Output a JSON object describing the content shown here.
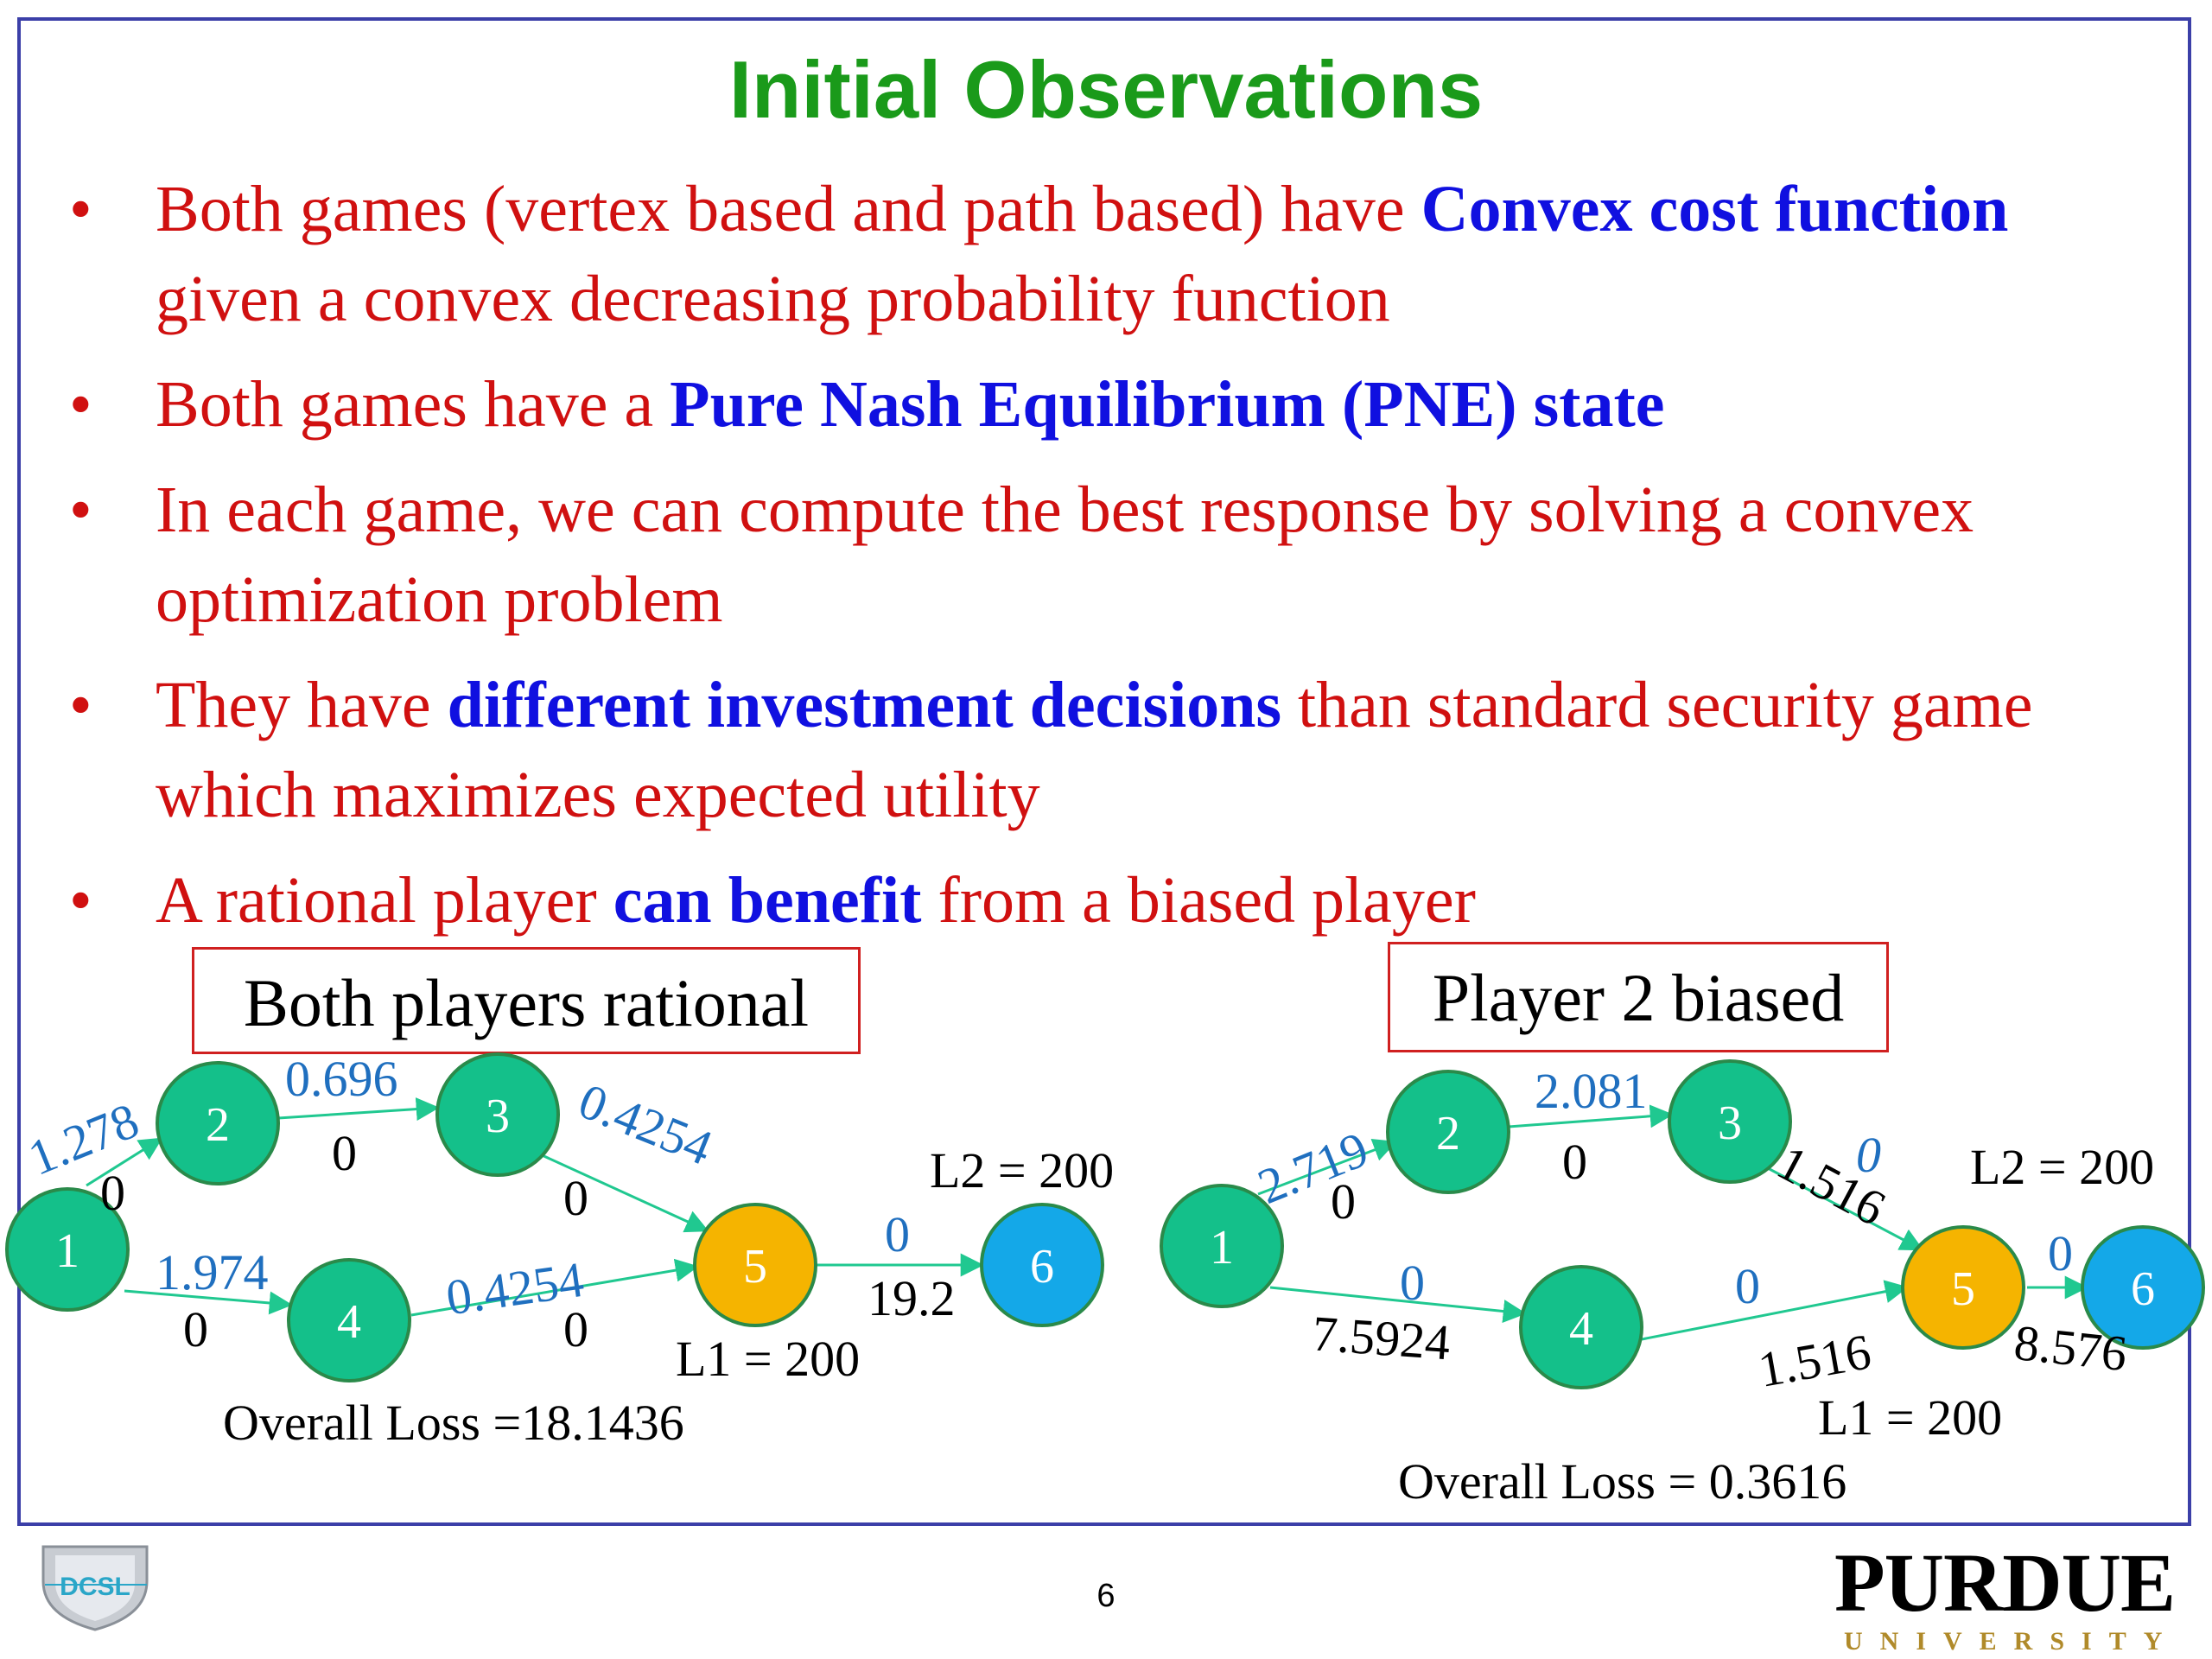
{
  "title": "Initial Observations",
  "bullets": [
    {
      "segments": [
        {
          "text": "Both games (vertex based and path based) have ",
          "hl": false
        },
        {
          "text": "Convex cost function",
          "hl": true
        },
        {
          "text": " given a convex decreasing probability function",
          "hl": false
        }
      ]
    },
    {
      "segments": [
        {
          "text": "Both games have a ",
          "hl": false
        },
        {
          "text": "Pure Nash Equilibrium (PNE) state",
          "hl": true
        }
      ]
    },
    {
      "segments": [
        {
          "text": "In each game, we can compute the best response by solving a convex optimization problem",
          "hl": false
        }
      ]
    },
    {
      "segments": [
        {
          "text": "They have ",
          "hl": false
        },
        {
          "text": "different investment decisions",
          "hl": true
        },
        {
          "text": " than standard security game which maximizes expected utility",
          "hl": false
        }
      ]
    },
    {
      "segments": [
        {
          "text": "A rational player ",
          "hl": false
        },
        {
          "text": "can benefit",
          "hl": true
        },
        {
          "text": " from a biased player",
          "hl": false
        }
      ]
    }
  ],
  "left_graph": {
    "label": "Both players rational",
    "edges": {
      "e12": {
        "top": "1.278",
        "bottom": "0"
      },
      "e23": {
        "top": "0.696",
        "bottom": "0"
      },
      "e35": {
        "top": "0.4254",
        "bottom": "0"
      },
      "e14": {
        "top": "1.974",
        "bottom": "0"
      },
      "e45": {
        "top": "0.4254",
        "bottom": "0"
      },
      "e56": {
        "top": "0",
        "bottom": "19.2"
      }
    },
    "l2": "L2 = 200",
    "l1": "L1 = 200",
    "loss": "Overall Loss =18.1436"
  },
  "right_graph": {
    "label": "Player 2 biased",
    "edges": {
      "e12": {
        "top": "2.719",
        "bottom": "0"
      },
      "e23": {
        "top": "2.081",
        "bottom": "0"
      },
      "e35": {
        "top": "0",
        "bottom": "1.516"
      },
      "e14": {
        "top": "0",
        "bottom": "7.5924"
      },
      "e45": {
        "top": "0",
        "bottom": "1.516"
      },
      "e56": {
        "top": "0",
        "bottom": "8.576"
      }
    },
    "l2": "L2 = 200",
    "l1": "L1 = 200",
    "loss": "Overall Loss = 0.3616"
  },
  "nodes": [
    "1",
    "2",
    "3",
    "4",
    "5",
    "6"
  ],
  "colors": {
    "title": "#1a9a1a",
    "text": "#d01010",
    "highlight": "#1010e0",
    "node_green": "#14c08a",
    "node_target": "#f5b400",
    "node_sink": "#14a8e8",
    "edge": "#20c890",
    "edge_label": "#1f6fbf"
  },
  "footer": {
    "page_number": "6",
    "left_logo": "DCSL",
    "right_logo_word": "PURDUE",
    "right_logo_sub": "UNIVERSITY"
  }
}
